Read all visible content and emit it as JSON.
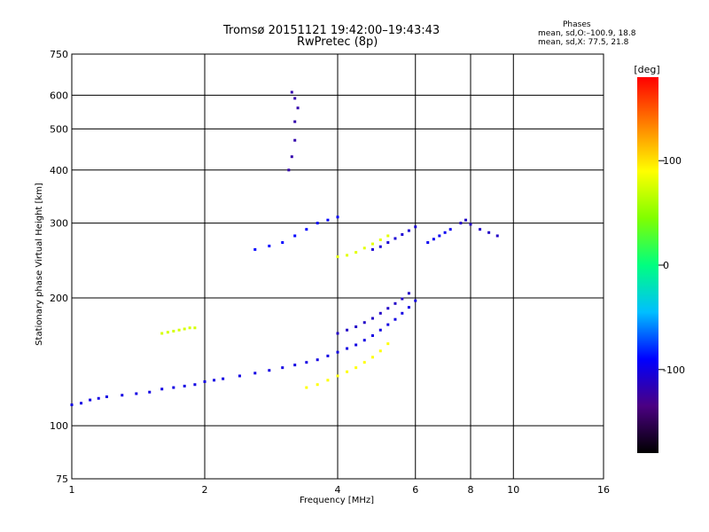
{
  "header": {
    "title_line1": "Tromsø 20151121 19:42:00–19:43:43",
    "title_line2": "RwPretec (8p)"
  },
  "phase_stats": {
    "heading": "Phases",
    "line_o": "mean, sd,O:–100.9, 18.8",
    "line_x": "mean, sd,X:  77.5, 21.8"
  },
  "chart_data": {
    "type": "scatter",
    "title": "Tromsø 20151121 19:42:00–19:43:43",
    "subtitle": "RwPretec (8p)",
    "xlabel": "Frequency [MHz]",
    "ylabel": "Stationary phase Virtual Height [km]",
    "xscale": "log",
    "yscale": "log",
    "xlim": [
      1,
      16
    ],
    "ylim": [
      75,
      750
    ],
    "x_ticks": [
      1,
      2,
      4,
      6,
      8,
      10,
      16
    ],
    "y_ticks": [
      75,
      100,
      200,
      300,
      400,
      500,
      600,
      750
    ],
    "grid": true,
    "colorbar": {
      "label": "[deg]",
      "range": [
        -180,
        180
      ],
      "ticks": [
        100,
        0,
        -100
      ],
      "colormap": [
        "#000000",
        "#4b0082",
        "#0000ff",
        "#00bfff",
        "#00ff80",
        "#80ff00",
        "#ffff00",
        "#ff8000",
        "#ff0000"
      ]
    },
    "series": [
      {
        "x": [
          1.0,
          1.05,
          1.1,
          1.15,
          1.2,
          1.3,
          1.4,
          1.5,
          1.6,
          1.7,
          1.8,
          1.9,
          2.0,
          2.1,
          2.2,
          2.4,
          2.6,
          2.8,
          3.0,
          3.2,
          3.4,
          3.6,
          3.8,
          4.0,
          4.2,
          4.4,
          4.6,
          4.8,
          5.0,
          5.2,
          5.4,
          5.6,
          5.8,
          6.0
        ],
        "y": [
          112,
          113,
          115,
          116,
          117,
          118,
          119,
          120,
          122,
          123,
          124,
          125,
          127,
          128,
          129,
          131,
          133,
          135,
          137,
          139,
          141,
          143,
          146,
          149,
          152,
          155,
          159,
          163,
          168,
          173,
          178,
          184,
          190,
          197
        ],
        "phase": -100
      },
      {
        "x": [
          3.4,
          3.6,
          3.8,
          4.0,
          4.2,
          4.4,
          4.6,
          4.8,
          5.0,
          5.2
        ],
        "y": [
          123,
          125,
          128,
          131,
          134,
          137,
          141,
          145,
          150,
          156
        ],
        "phase": 90
      },
      {
        "x": [
          4.0,
          4.2,
          4.4,
          4.6,
          4.8,
          5.0,
          5.2,
          5.4,
          5.6,
          5.8
        ],
        "y": [
          165,
          168,
          171,
          175,
          179,
          184,
          189,
          194,
          199,
          205
        ],
        "phase": -110
      },
      {
        "x": [
          1.6,
          1.65,
          1.7,
          1.75,
          1.8,
          1.85,
          1.9
        ],
        "y": [
          165,
          166,
          167,
          168,
          169,
          170,
          170
        ],
        "phase": 75
      },
      {
        "x": [
          4.0,
          4.2,
          4.4,
          4.6,
          4.8,
          5.0,
          5.2
        ],
        "y": [
          250,
          252,
          256,
          262,
          268,
          274,
          280
        ],
        "phase": 80
      },
      {
        "x": [
          4.8,
          5.0,
          5.2,
          5.4,
          5.6,
          5.8,
          6.0
        ],
        "y": [
          260,
          264,
          270,
          276,
          282,
          288,
          294
        ],
        "phase": -105
      },
      {
        "x": [
          2.6,
          2.8,
          3.0,
          3.2,
          3.4,
          3.6,
          3.8,
          4.0
        ],
        "y": [
          260,
          265,
          270,
          280,
          290,
          300,
          305,
          310
        ],
        "phase": -90
      },
      {
        "x": [
          3.1,
          3.15,
          3.2,
          3.2,
          3.25,
          3.2,
          3.15
        ],
        "y": [
          400,
          430,
          470,
          520,
          560,
          590,
          610
        ],
        "phase": -120
      },
      {
        "x": [
          6.4,
          6.6,
          6.8,
          7.0,
          7.2
        ],
        "y": [
          270,
          275,
          280,
          285,
          290
        ],
        "phase": -95
      },
      {
        "x": [
          7.6,
          7.8,
          8.0,
          8.4,
          8.8,
          9.2
        ],
        "y": [
          300,
          305,
          298,
          290,
          285,
          280
        ],
        "phase": -110
      }
    ]
  }
}
